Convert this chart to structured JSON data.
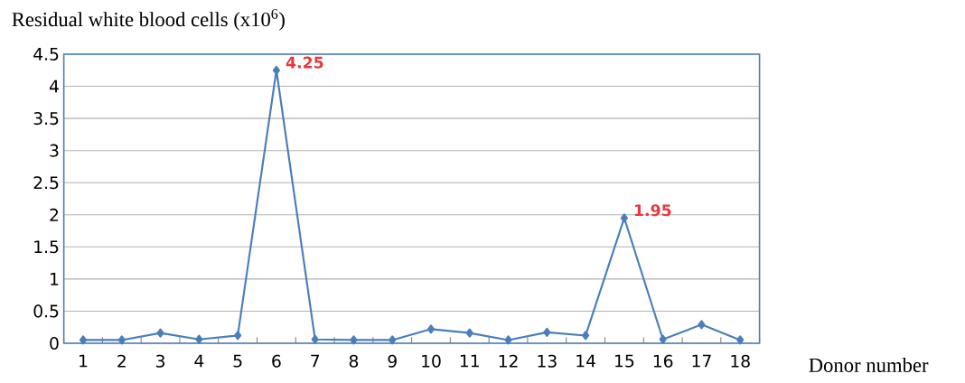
{
  "chart_data": {
    "type": "line",
    "title": "Residual white blood cells (x10$^{6}$)",
    "xlabel": "Donor number",
    "categories": [
      "1",
      "2",
      "3",
      "4",
      "5",
      "6",
      "7",
      "8",
      "9",
      "10",
      "11",
      "12",
      "13",
      "14",
      "15",
      "16",
      "17",
      "18"
    ],
    "series": [
      {
        "color": "#4a7ebb",
        "values": [
          0.05,
          0.05,
          0.16,
          0.06,
          0.12,
          4.25,
          0.06,
          0.05,
          0.05,
          0.22,
          0.16,
          0.05,
          0.17,
          0.12,
          1.95,
          0.06,
          0.29,
          0.05
        ],
        "value_labels": [
          null,
          null,
          null,
          null,
          null,
          "4.25",
          null,
          null,
          null,
          null,
          null,
          null,
          null,
          null,
          "1.95",
          null,
          null,
          null
        ]
      }
    ],
    "ylim": [
      0,
      4.5
    ],
    "yticks": [
      0,
      0.5,
      1,
      1.5,
      2,
      2.5,
      3,
      3.5,
      4,
      4.5
    ],
    "grid": "y",
    "marker": "diamond",
    "line_style": "solid"
  }
}
